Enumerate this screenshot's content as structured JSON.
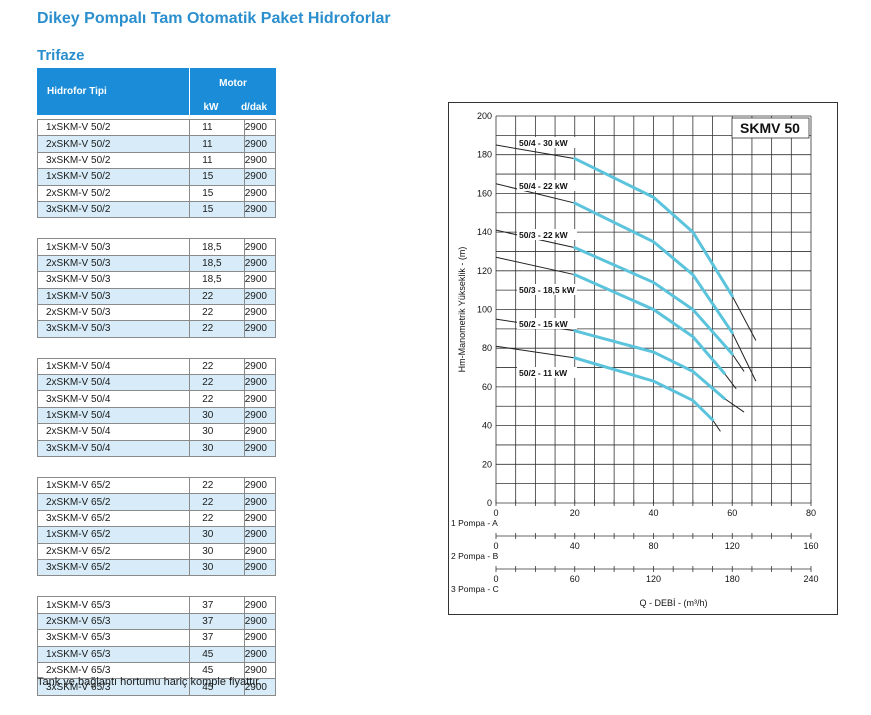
{
  "title": "Dikey Pompalı Tam Otomatik Paket Hidroforlar",
  "subtitle": "Trifaze",
  "table": {
    "col_type": "Hidrofor Tipi",
    "col_motor": "Motor",
    "col_kw": "kW",
    "col_rpm": "d/dak",
    "groups": [
      [
        {
          "type": "1xSKM-V 50/2",
          "kw": "11",
          "rpm": "2900"
        },
        {
          "type": "2xSKM-V 50/2",
          "kw": "11",
          "rpm": "2900"
        },
        {
          "type": "3xSKM-V 50/2",
          "kw": "11",
          "rpm": "2900"
        },
        {
          "type": "1xSKM-V 50/2",
          "kw": "15",
          "rpm": "2900"
        },
        {
          "type": "2xSKM-V 50/2",
          "kw": "15",
          "rpm": "2900"
        },
        {
          "type": "3xSKM-V 50/2",
          "kw": "15",
          "rpm": "2900"
        }
      ],
      [
        {
          "type": "1xSKM-V 50/3",
          "kw": "18,5",
          "rpm": "2900"
        },
        {
          "type": "2xSKM-V 50/3",
          "kw": "18,5",
          "rpm": "2900"
        },
        {
          "type": "3xSKM-V 50/3",
          "kw": "18,5",
          "rpm": "2900"
        },
        {
          "type": "1xSKM-V 50/3",
          "kw": "22",
          "rpm": "2900"
        },
        {
          "type": "2xSKM-V 50/3",
          "kw": "22",
          "rpm": "2900"
        },
        {
          "type": "3xSKM-V 50/3",
          "kw": "22",
          "rpm": "2900"
        }
      ],
      [
        {
          "type": "1xSKM-V 50/4",
          "kw": "22",
          "rpm": "2900"
        },
        {
          "type": "2xSKM-V 50/4",
          "kw": "22",
          "rpm": "2900"
        },
        {
          "type": "3xSKM-V 50/4",
          "kw": "22",
          "rpm": "2900"
        },
        {
          "type": "1xSKM-V 50/4",
          "kw": "30",
          "rpm": "2900"
        },
        {
          "type": "2xSKM-V 50/4",
          "kw": "30",
          "rpm": "2900"
        },
        {
          "type": "3xSKM-V 50/4",
          "kw": "30",
          "rpm": "2900"
        }
      ],
      [
        {
          "type": "1xSKM-V 65/2",
          "kw": "22",
          "rpm": "2900"
        },
        {
          "type": "2xSKM-V 65/2",
          "kw": "22",
          "rpm": "2900"
        },
        {
          "type": "3xSKM-V 65/2",
          "kw": "22",
          "rpm": "2900"
        },
        {
          "type": "1xSKM-V 65/2",
          "kw": "30",
          "rpm": "2900"
        },
        {
          "type": "2xSKM-V 65/2",
          "kw": "30",
          "rpm": "2900"
        },
        {
          "type": "3xSKM-V 65/2",
          "kw": "30",
          "rpm": "2900"
        }
      ],
      [
        {
          "type": "1xSKM-V 65/3",
          "kw": "37",
          "rpm": "2900"
        },
        {
          "type": "2xSKM-V 65/3",
          "kw": "37",
          "rpm": "2900"
        },
        {
          "type": "3xSKM-V 65/3",
          "kw": "37",
          "rpm": "2900"
        },
        {
          "type": "1xSKM-V 65/3",
          "kw": "45",
          "rpm": "2900"
        },
        {
          "type": "2xSKM-V 65/3",
          "kw": "45",
          "rpm": "2900"
        },
        {
          "type": "3xSKM-V 65/3",
          "kw": "45",
          "rpm": "2900"
        }
      ]
    ]
  },
  "note": "Tank ve bağlantı hortumu hariç komple fiyattır.",
  "colors": {
    "title": "#2b8fce",
    "header_bg": "#1a8cd8",
    "row_alt": "#d7ecf8",
    "curve_blue": "#5bc4dc"
  },
  "chart_data": {
    "type": "line",
    "title": "SKMV 50",
    "ylabel": "Hm-Manometrik Yükseklik - (m)",
    "xlabel": "Q - DEBİ - (m³/h)",
    "ylim": [
      0,
      200
    ],
    "yticks": [
      "0",
      "20",
      "40",
      "60",
      "80",
      "100",
      "120",
      "140",
      "160",
      "180",
      "200"
    ],
    "x_axes": [
      {
        "label": "1 Pompa - A",
        "ticks": [
          "0",
          "20",
          "40",
          "60",
          "80"
        ],
        "max": 80
      },
      {
        "label": "2 Pompa - B",
        "ticks": [
          "0",
          "40",
          "80",
          "120",
          "160"
        ],
        "max": 160
      },
      {
        "label": "3 Pompa - C",
        "ticks": [
          "0",
          "60",
          "120",
          "180",
          "240"
        ],
        "max": 240
      }
    ],
    "grid": true,
    "series": [
      {
        "name": "50/4 - 30 kW",
        "x": [
          0,
          20,
          40,
          50,
          60,
          66
        ],
        "y": [
          185,
          178,
          158,
          140,
          107,
          84
        ]
      },
      {
        "name": "50/4 - 22 kW",
        "x": [
          0,
          20,
          40,
          50,
          60,
          66
        ],
        "y": [
          165,
          155,
          135,
          118,
          88,
          63
        ]
      },
      {
        "name": "50/3 - 22 kW",
        "x": [
          0,
          20,
          40,
          50,
          60,
          63
        ],
        "y": [
          141,
          132,
          114,
          100,
          77,
          68
        ]
      },
      {
        "name": "50/3 - 18,5 kW",
        "x": [
          0,
          20,
          40,
          50,
          58,
          61
        ],
        "y": [
          127,
          118,
          100,
          86,
          67,
          59
        ]
      },
      {
        "name": "50/2 - 15 kW",
        "x": [
          0,
          20,
          40,
          50,
          58,
          63
        ],
        "y": [
          95,
          89,
          78,
          68,
          54,
          47
        ]
      },
      {
        "name": "50/2 - 11 kW",
        "x": [
          0,
          20,
          40,
          50,
          55,
          57
        ],
        "y": [
          81,
          75,
          63,
          53,
          43,
          37
        ]
      }
    ]
  }
}
